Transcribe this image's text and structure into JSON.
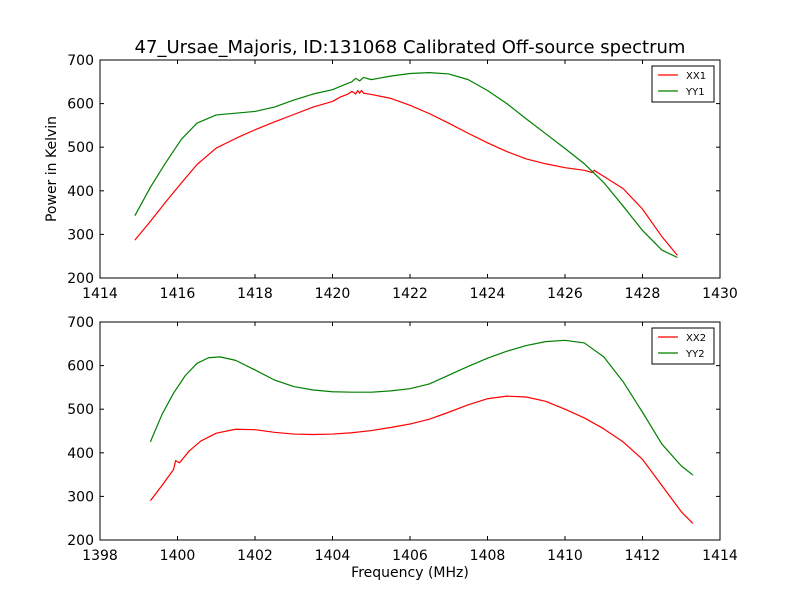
{
  "chart_data": [
    {
      "type": "line",
      "title": "47_Ursae_Majoris, ID:131068 Calibrated Off-source spectrum",
      "xlabel": "",
      "ylabel": "Power in Kelvin",
      "xlim": [
        1414,
        1430
      ],
      "ylim": [
        200,
        700
      ],
      "xticks": [
        1414,
        1416,
        1418,
        1420,
        1422,
        1424,
        1426,
        1428,
        1430
      ],
      "yticks": [
        200,
        300,
        400,
        500,
        600,
        700
      ],
      "legend_position": "top-right",
      "series": [
        {
          "name": "XX1",
          "color": "#ff0000",
          "x": [
            1414.9,
            1415.3,
            1415.7,
            1416.1,
            1416.5,
            1417.0,
            1417.5,
            1418.0,
            1418.5,
            1419.0,
            1419.5,
            1420.0,
            1420.2,
            1420.4,
            1420.5,
            1420.6,
            1420.65,
            1420.7,
            1420.75,
            1420.8,
            1421.0,
            1421.5,
            1422.0,
            1422.5,
            1423.0,
            1423.5,
            1424.0,
            1424.5,
            1425.0,
            1425.5,
            1426.0,
            1426.5,
            1426.7,
            1426.75,
            1427.0,
            1427.5,
            1428.0,
            1428.5,
            1428.9
          ],
          "y": [
            287,
            330,
            375,
            418,
            460,
            498,
            520,
            540,
            558,
            575,
            592,
            605,
            615,
            622,
            628,
            622,
            630,
            624,
            630,
            624,
            621,
            612,
            596,
            577,
            555,
            532,
            510,
            490,
            473,
            462,
            453,
            447,
            442,
            447,
            433,
            405,
            358,
            295,
            252
          ]
        },
        {
          "name": "YY1",
          "color": "#008000",
          "x": [
            1414.9,
            1415.3,
            1415.7,
            1416.1,
            1416.5,
            1417.0,
            1417.5,
            1418.0,
            1418.5,
            1419.0,
            1419.5,
            1420.0,
            1420.3,
            1420.5,
            1420.6,
            1420.7,
            1420.8,
            1421.0,
            1421.5,
            1422.0,
            1422.5,
            1423.0,
            1423.5,
            1424.0,
            1424.5,
            1425.0,
            1425.5,
            1426.0,
            1426.5,
            1427.0,
            1427.5,
            1428.0,
            1428.5,
            1428.9
          ],
          "y": [
            343,
            408,
            465,
            518,
            555,
            574,
            578,
            582,
            592,
            608,
            622,
            632,
            643,
            650,
            658,
            652,
            660,
            655,
            663,
            669,
            671,
            668,
            655,
            630,
            600,
            565,
            531,
            497,
            462,
            419,
            365,
            309,
            264,
            247
          ]
        }
      ]
    },
    {
      "type": "line",
      "title": "",
      "xlabel": "Frequency (MHz)",
      "ylabel": "",
      "xlim": [
        1398,
        1414
      ],
      "ylim": [
        200,
        700
      ],
      "xticks": [
        1398,
        1400,
        1402,
        1404,
        1406,
        1408,
        1410,
        1412,
        1414
      ],
      "yticks": [
        200,
        300,
        400,
        500,
        600,
        700
      ],
      "legend_position": "top-right",
      "series": [
        {
          "name": "XX2",
          "color": "#ff0000",
          "x": [
            1399.3,
            1399.6,
            1399.9,
            1399.95,
            1400.05,
            1400.3,
            1400.6,
            1401.0,
            1401.5,
            1402.0,
            1402.5,
            1403.0,
            1403.5,
            1404.0,
            1404.5,
            1405.0,
            1405.5,
            1406.0,
            1406.5,
            1407.0,
            1407.5,
            1408.0,
            1408.5,
            1409.0,
            1409.5,
            1410.0,
            1410.5,
            1411.0,
            1411.5,
            1412.0,
            1412.5,
            1413.0,
            1413.3
          ],
          "y": [
            290,
            325,
            362,
            382,
            377,
            404,
            427,
            445,
            454,
            453,
            447,
            443,
            442,
            443,
            446,
            451,
            458,
            466,
            477,
            493,
            510,
            524,
            530,
            528,
            518,
            500,
            480,
            455,
            425,
            385,
            325,
            265,
            238
          ]
        },
        {
          "name": "YY2",
          "color": "#008000",
          "x": [
            1399.3,
            1399.6,
            1399.9,
            1400.2,
            1400.5,
            1400.8,
            1401.1,
            1401.5,
            1402.0,
            1402.5,
            1403.0,
            1403.5,
            1404.0,
            1404.5,
            1405.0,
            1405.5,
            1406.0,
            1406.5,
            1407.0,
            1407.5,
            1408.0,
            1408.5,
            1409.0,
            1409.5,
            1410.0,
            1410.5,
            1411.0,
            1411.5,
            1412.0,
            1412.5,
            1413.0,
            1413.3
          ],
          "y": [
            425,
            488,
            537,
            577,
            605,
            618,
            620,
            612,
            590,
            567,
            552,
            544,
            540,
            539,
            539,
            542,
            547,
            558,
            578,
            598,
            617,
            633,
            646,
            655,
            658,
            652,
            620,
            563,
            493,
            420,
            370,
            349
          ]
        }
      ]
    }
  ]
}
